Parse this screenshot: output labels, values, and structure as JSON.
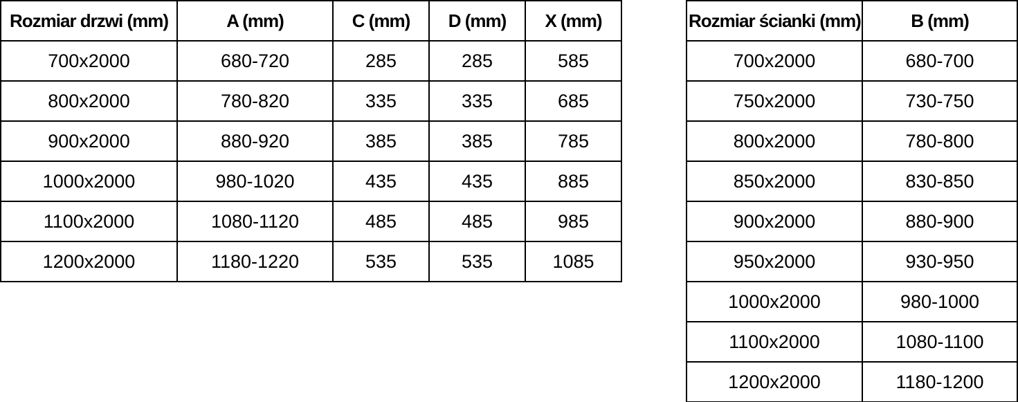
{
  "door_table": {
    "headers": [
      "Rozmiar drzwi (mm)",
      "A (mm)",
      "C (mm)",
      "D (mm)",
      "X (mm)"
    ],
    "rows": [
      [
        "700x2000",
        "680-720",
        "285",
        "285",
        "585"
      ],
      [
        "800x2000",
        "780-820",
        "335",
        "335",
        "685"
      ],
      [
        "900x2000",
        "880-920",
        "385",
        "385",
        "785"
      ],
      [
        "1000x2000",
        "980-1020",
        "435",
        "435",
        "885"
      ],
      [
        "1100x2000",
        "1080-1120",
        "485",
        "485",
        "985"
      ],
      [
        "1200x2000",
        "1180-1220",
        "535",
        "535",
        "1085"
      ]
    ]
  },
  "wall_table": {
    "headers": [
      "Rozmiar ścianki (mm)",
      "B (mm)"
    ],
    "rows": [
      [
        "700x2000",
        "680-700"
      ],
      [
        "750x2000",
        "730-750"
      ],
      [
        "800x2000",
        "780-800"
      ],
      [
        "850x2000",
        "830-850"
      ],
      [
        "900x2000",
        "880-900"
      ],
      [
        "950x2000",
        "930-950"
      ],
      [
        "1000x2000",
        "980-1000"
      ],
      [
        "1100x2000",
        "1080-1100"
      ],
      [
        "1200x2000",
        "1180-1200"
      ]
    ]
  },
  "colors": {
    "border": "#000000",
    "text": "#000000",
    "background": "#ffffff"
  }
}
